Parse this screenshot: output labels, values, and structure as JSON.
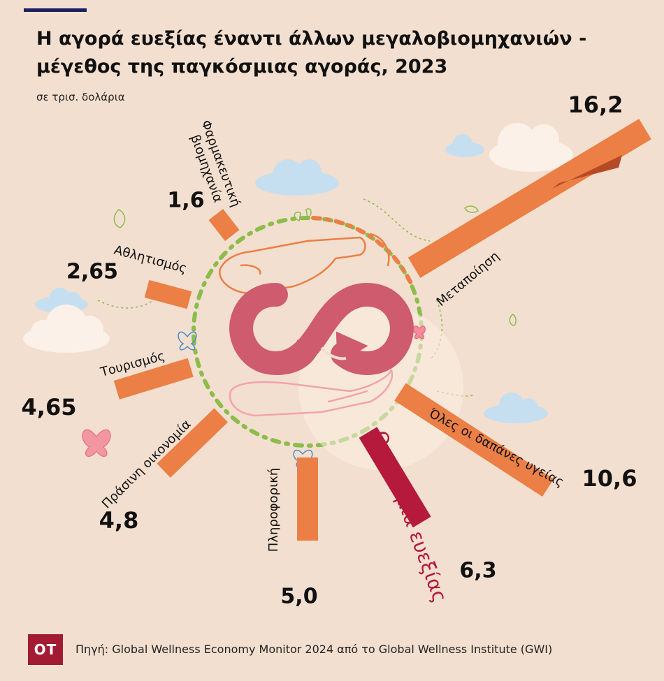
{
  "header": {
    "title": "Η αγορά ευεξίας έναντι άλλων μεγαλοβιομηχανιών - μέγεθος της παγκόσμιας αγοράς, 2023",
    "subtitle": "σε τρισ. δολάρια"
  },
  "footer": {
    "logo": "OT",
    "source": "Πηγή: Global Wellness Economy Monitor 2024 από το Global Wellness Institute (GWI)"
  },
  "colors": {
    "background": "#f3dfcf",
    "bar": "#ec7f45",
    "highlight": "#b5193c",
    "ring_green": "#8bbd4a",
    "ring_orange": "#ec7f45",
    "logo_symbol": "#cf5b6e"
  },
  "icons": [
    "infinity-recycle-icon",
    "hand-icon",
    "butterfly-icon",
    "leaf-icon",
    "cloud-icon"
  ],
  "chart_data": {
    "type": "bar",
    "layout": "radial",
    "title": "Η αγορά ευεξίας έναντι άλλων μεγαλοβιομηχανιών - μέγεθος της παγκόσμιας αγοράς, 2023",
    "subtitle": "σε τρισ. δολάρια",
    "categories": [
      "Φαρμακευτική βιομηχανία",
      "Αθλητισμός",
      "Τουρισμός",
      "Πράσινη οικονομία",
      "Πληροφορική",
      "Οικονομία ευεξίας",
      "Όλες οι δαπάνες υγείας",
      "Μεταποίηση"
    ],
    "values": [
      1.6,
      2.65,
      4.65,
      4.8,
      5.0,
      6.3,
      10.6,
      16.2
    ],
    "value_labels": [
      "1,6",
      "2,65",
      "4,65",
      "4,8",
      "5,0",
      "6,3",
      "10,6",
      "16,2"
    ],
    "highlight": "Οικονομία ευεξίας"
  }
}
